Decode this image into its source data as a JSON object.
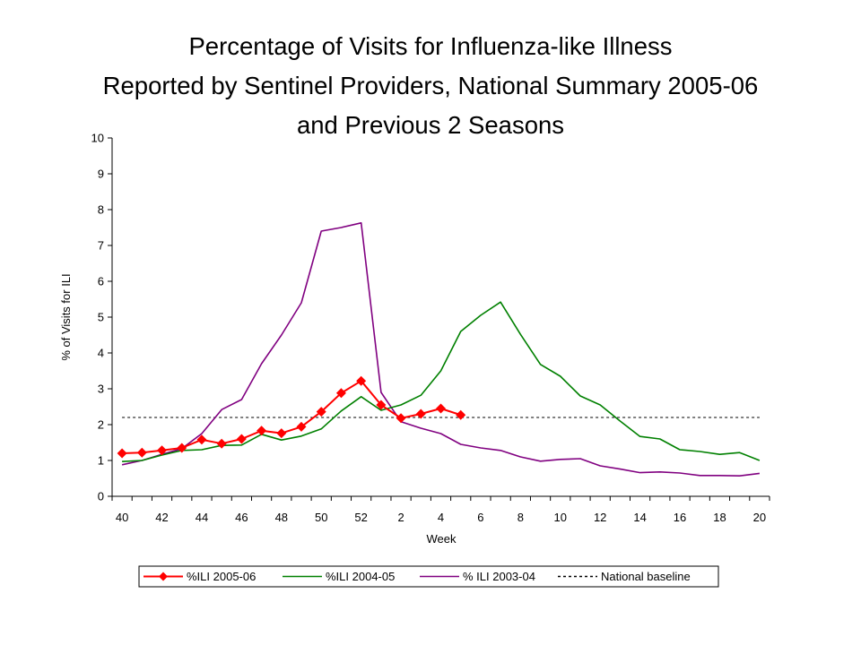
{
  "chart_data": {
    "type": "line",
    "title_lines": [
      "Percentage of Visits for Influenza-like Illness",
      "Reported by Sentinel Providers, National Summary 2005-06",
      "and Previous 2 Seasons"
    ],
    "xlabel": "Week",
    "ylabel": "% of Visits for ILI",
    "ylim": [
      0,
      10
    ],
    "yticks": [
      "0",
      "1",
      "2",
      "3",
      "4",
      "5",
      "6",
      "7",
      "8",
      "9",
      "10"
    ],
    "weeks": [
      "40",
      "41",
      "42",
      "43",
      "44",
      "45",
      "46",
      "47",
      "48",
      "49",
      "50",
      "51",
      "52",
      "1",
      "2",
      "3",
      "4",
      "5",
      "6",
      "7",
      "8",
      "9",
      "10",
      "11",
      "12",
      "13",
      "14",
      "15",
      "16",
      "17",
      "18",
      "19",
      "20"
    ],
    "xtick_labels": [
      "40",
      "",
      "42",
      "",
      "44",
      "",
      "46",
      "",
      "48",
      "",
      "50",
      "",
      "52",
      "",
      "2",
      "",
      "4",
      "",
      "6",
      "",
      "8",
      "",
      "10",
      "",
      "12",
      "",
      "14",
      "",
      "16",
      "",
      "18",
      "",
      "20"
    ],
    "series": [
      {
        "name": "%ILI 2005-06",
        "color": "#ff0000",
        "marker": "diamond",
        "values": [
          1.2,
          1.22,
          1.28,
          1.35,
          1.58,
          1.47,
          1.6,
          1.83,
          1.76,
          1.94,
          2.36,
          2.88,
          3.22,
          2.55,
          2.18,
          2.3,
          2.45,
          2.27
        ]
      },
      {
        "name": "%ILI 2004-05",
        "color": "#008000",
        "marker": "none",
        "values": [
          0.97,
          1.0,
          1.15,
          1.28,
          1.3,
          1.42,
          1.43,
          1.73,
          1.57,
          1.68,
          1.88,
          2.38,
          2.78,
          2.4,
          2.55,
          2.82,
          3.5,
          4.6,
          5.05,
          5.42,
          4.52,
          3.68,
          3.35,
          2.8,
          2.55,
          2.1,
          1.67,
          1.6,
          1.3,
          1.25,
          1.17,
          1.22,
          1.0
        ]
      },
      {
        "name": "% ILI 2003-04",
        "color": "#800080",
        "marker": "none",
        "values": [
          0.88,
          1.0,
          1.17,
          1.33,
          1.75,
          2.42,
          2.7,
          3.7,
          4.5,
          5.4,
          7.4,
          7.5,
          7.63,
          2.9,
          2.08,
          1.9,
          1.75,
          1.45,
          1.35,
          1.28,
          1.1,
          0.98,
          1.03,
          1.05,
          0.85,
          0.76,
          0.66,
          0.68,
          0.65,
          0.58,
          0.58,
          0.57,
          0.64
        ]
      }
    ],
    "baseline": {
      "name": "National baseline",
      "value": 2.2,
      "color": "#000000",
      "style": "dashed"
    },
    "legend_position": "bottom-center",
    "grid": false
  }
}
